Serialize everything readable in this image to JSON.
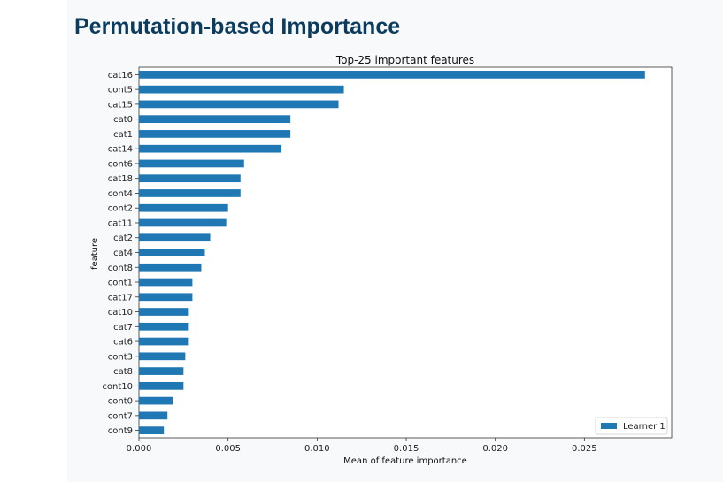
{
  "page": {
    "heading": "Permutation-based Importance"
  },
  "colors": {
    "bar": "#1f77b4",
    "heading": "#0b3c5d"
  },
  "chart_data": {
    "type": "bar",
    "orientation": "horizontal",
    "title": "Top-25 important features",
    "xlabel": "Mean of feature importance",
    "ylabel": "feature",
    "xlim": [
      0.0,
      0.0299
    ],
    "xticks": [
      "0.000",
      "0.005",
      "0.010",
      "0.015",
      "0.020",
      "0.025"
    ],
    "xtick_values": [
      0.0,
      0.005,
      0.01,
      0.015,
      0.02,
      0.025
    ],
    "grid": false,
    "legend_position": "bottom-right",
    "categories": [
      "cat16",
      "cont5",
      "cat15",
      "cat0",
      "cat1",
      "cat14",
      "cont6",
      "cat18",
      "cont4",
      "cont2",
      "cat11",
      "cat2",
      "cat4",
      "cont8",
      "cont1",
      "cat17",
      "cat10",
      "cat7",
      "cat6",
      "cont3",
      "cat8",
      "cont10",
      "cont0",
      "cont7",
      "cont9"
    ],
    "series": [
      {
        "name": "Learner 1",
        "color": "#1f77b4",
        "values": [
          0.0284,
          0.0115,
          0.0112,
          0.0085,
          0.0085,
          0.008,
          0.0059,
          0.0057,
          0.0057,
          0.005,
          0.0049,
          0.004,
          0.0037,
          0.0035,
          0.003,
          0.003,
          0.0028,
          0.0028,
          0.0028,
          0.0026,
          0.0025,
          0.0025,
          0.0019,
          0.0016,
          0.0014
        ]
      }
    ]
  }
}
